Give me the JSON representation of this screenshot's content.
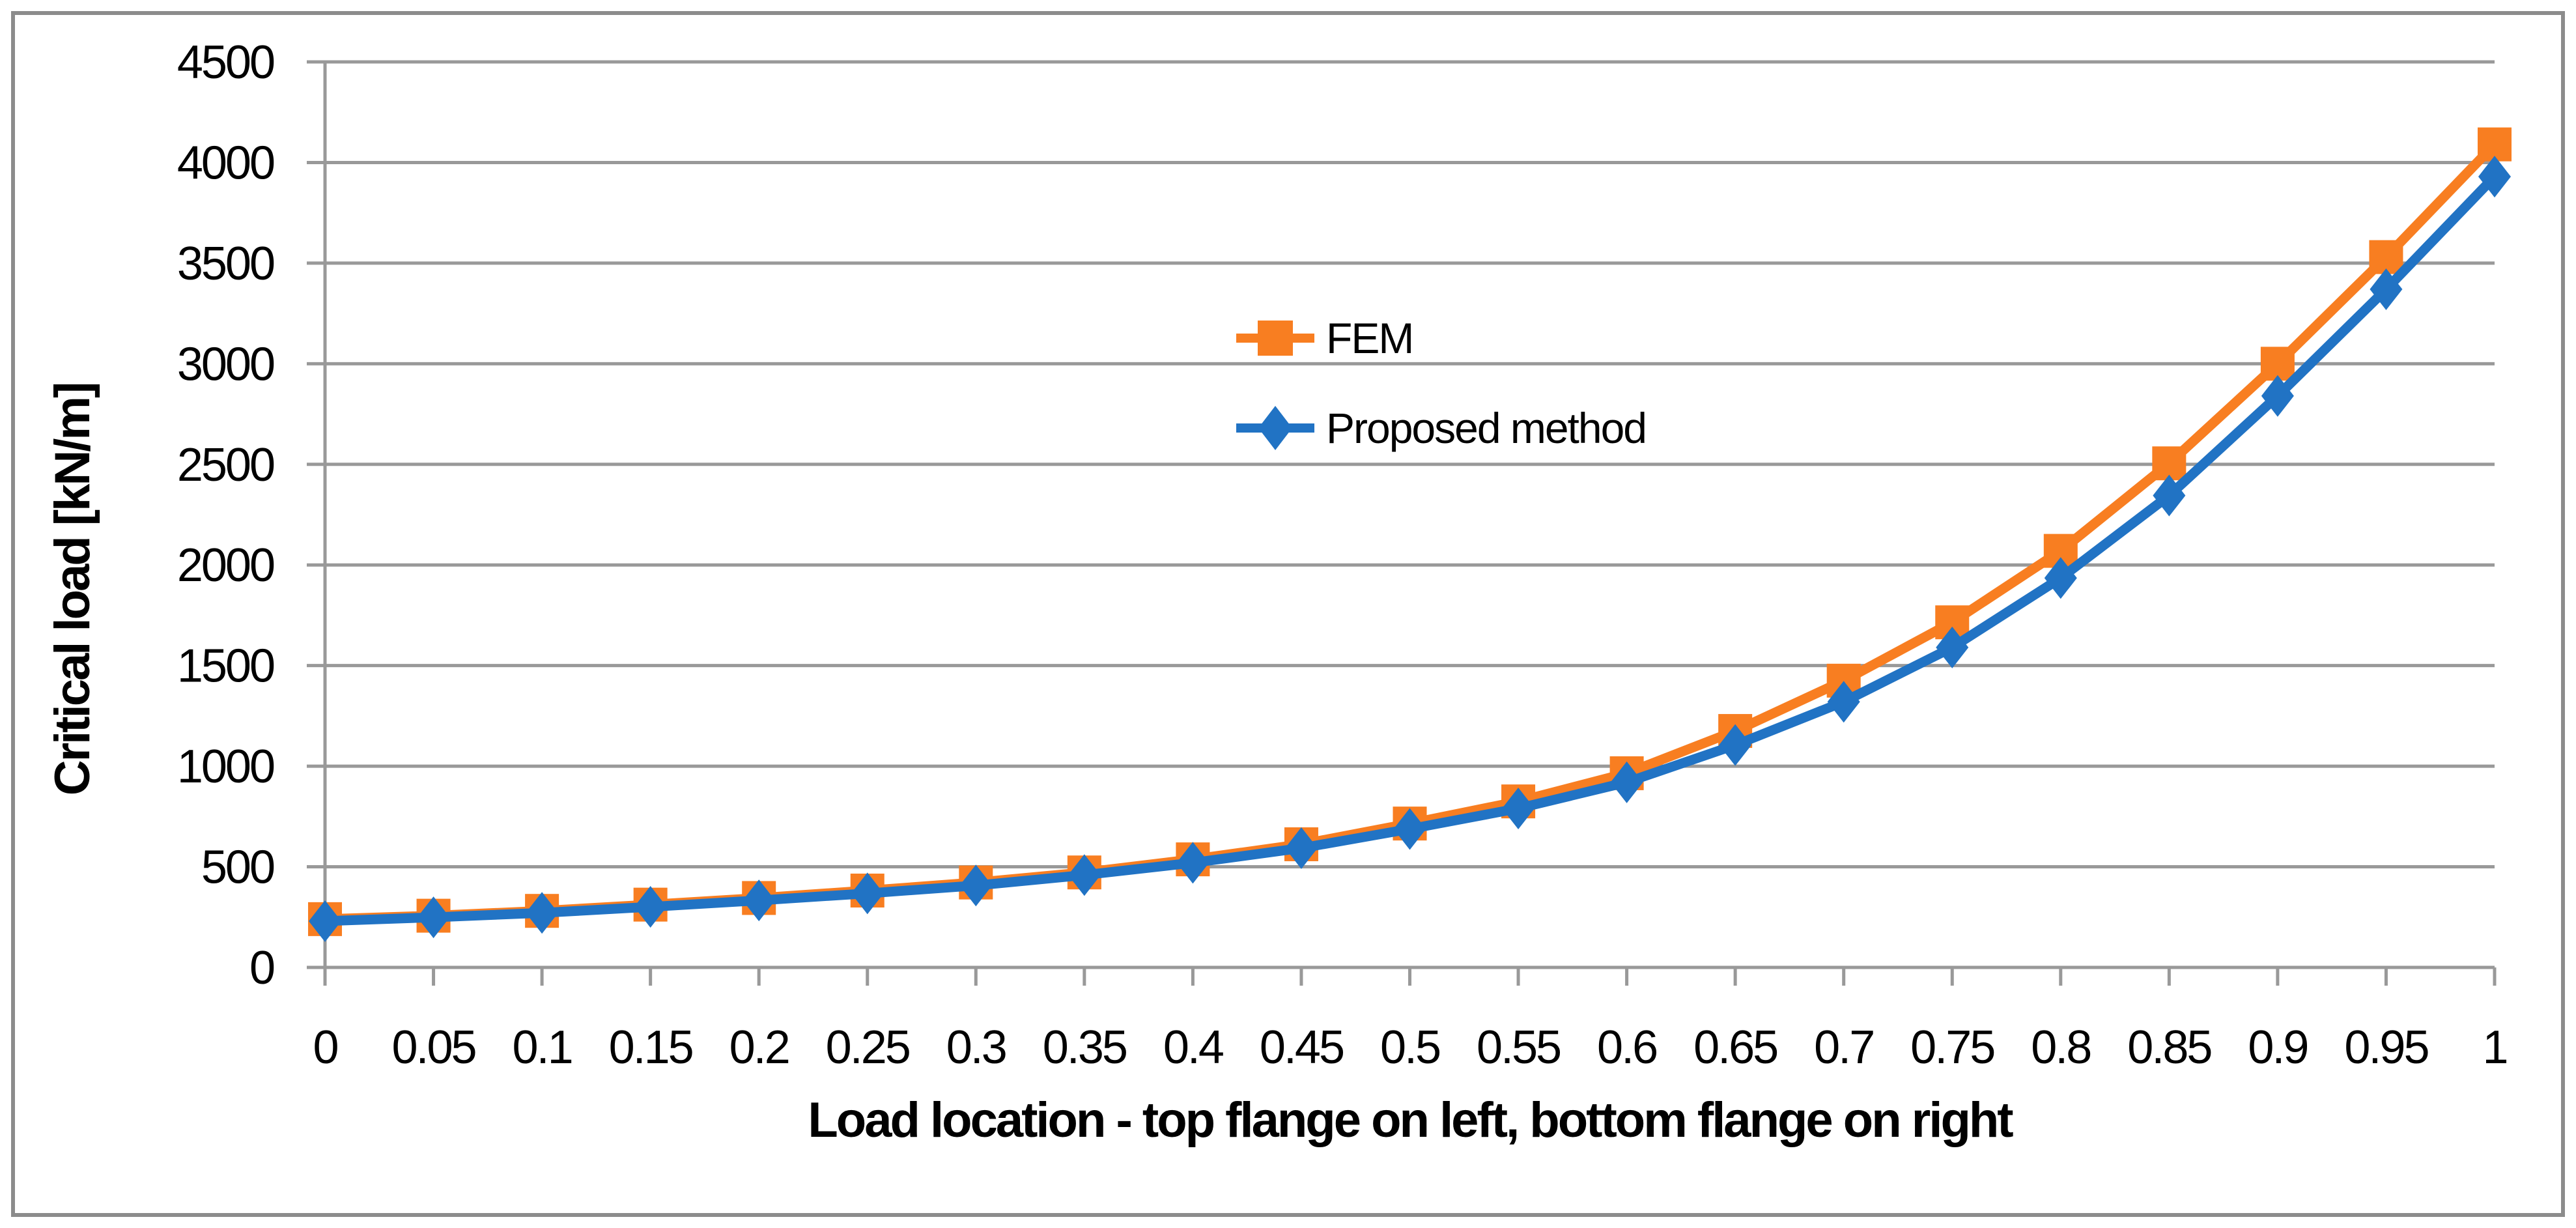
{
  "chart_data": {
    "type": "line",
    "title": "",
    "xlabel": "Load location - top flange on left, bottom flange on right",
    "ylabel": "Critical load [kN/m]",
    "x": [
      0,
      0.05,
      0.1,
      0.15,
      0.2,
      0.25,
      0.3,
      0.35,
      0.4,
      0.45,
      0.5,
      0.55,
      0.6,
      0.65,
      0.7,
      0.75,
      0.8,
      0.85,
      0.9,
      0.95,
      1
    ],
    "x_tick_labels": [
      "0",
      "0.05",
      "0.1",
      "0.15",
      "0.2",
      "0.25",
      "0.3",
      "0.35",
      "0.4",
      "0.45",
      "0.5",
      "0.55",
      "0.6",
      "0.65",
      "0.7",
      "0.75",
      "0.8",
      "0.85",
      "0.9",
      "0.95",
      "1"
    ],
    "y_ticks": [
      0,
      500,
      1000,
      1500,
      2000,
      2500,
      3000,
      3500,
      4000,
      4500
    ],
    "y_tick_labels": [
      "0",
      "500",
      "1000",
      "1500",
      "2000",
      "2500",
      "3000",
      "3500",
      "4000",
      "4500"
    ],
    "ylim": [
      0,
      4500
    ],
    "xlim": [
      0,
      1
    ],
    "grid": "horizontal-on",
    "legend_position": "inside-upper-middle",
    "series": [
      {
        "name": "FEM",
        "marker": "square",
        "color": "#F87E21",
        "values": [
          240,
          257,
          281,
          312,
          345,
          382,
          422,
          472,
          537,
          612,
          715,
          825,
          965,
          1175,
          1425,
          1715,
          2070,
          2505,
          3000,
          3530,
          4090
        ]
      },
      {
        "name": "Proposed method",
        "marker": "diamond",
        "color": "#2173C4",
        "values": [
          230,
          249,
          271,
          301,
          333,
          368,
          407,
          459,
          520,
          593,
          688,
          790,
          920,
          1105,
          1320,
          1590,
          1935,
          2345,
          2840,
          3370,
          3930
        ]
      }
    ]
  },
  "styles": {
    "background": "#FFFFFF",
    "gridline_color": "#999999",
    "axis_color": "#8F8F8F",
    "border_color": "#8C8C8C",
    "text_color": "#000000"
  }
}
